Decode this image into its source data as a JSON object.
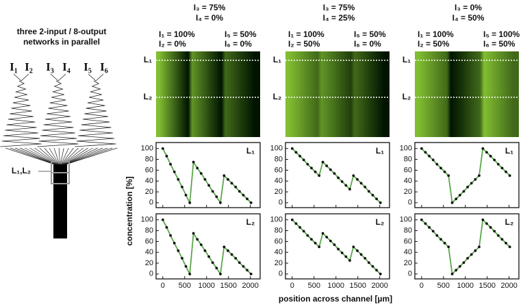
{
  "schematic": {
    "title": [
      "three 2-input / 8-output",
      "networks in parallel"
    ],
    "inputs": [
      "I₁",
      "I₂",
      "I₃",
      "I₄",
      "I₅",
      "I₆"
    ],
    "outlet_label": "L₁,L₂"
  },
  "columns": [
    {
      "top": [
        "I₃ = 75%",
        "I₄ = 0%"
      ],
      "left": [
        "I₁ = 100%",
        "I₂ = 0%"
      ],
      "right": [
        "I₅ = 50%",
        "I₆ = 0%"
      ],
      "image_labels": [
        "L₁",
        "L₂"
      ]
    },
    {
      "top": [
        "I₃ = 75%",
        "I₄ = 25%"
      ],
      "left": [
        "I₁ = 100%",
        "I₂ = 50%"
      ],
      "right": [
        "I₅ = 50%",
        "I₆ = 0%"
      ],
      "image_labels": [
        "L₁",
        "L₂"
      ]
    },
    {
      "top": [
        "I₃ = 0%",
        "I₄ = 50%"
      ],
      "left": [
        "I₁ = 100%",
        "I₂ = 50%"
      ],
      "right": [
        "I₅ = 100%",
        "I₆ = 50%"
      ],
      "image_labels": [
        "L₁",
        "L₂"
      ]
    }
  ],
  "axis_labels": {
    "y": "concentration [%]",
    "x": "position across channel [µm]"
  },
  "chart_data": [
    {
      "type": "line",
      "label": "L₁",
      "x": [
        0,
        88,
        176,
        264,
        352,
        440,
        528,
        616,
        700,
        788,
        876,
        964,
        1052,
        1140,
        1228,
        1316,
        1400,
        1488,
        1576,
        1664,
        1752,
        1840,
        1928,
        2016
      ],
      "xlim": [
        -60,
        2130
      ],
      "ylim": [
        -4,
        106
      ],
      "xticks": [
        0,
        500,
        1000,
        1500,
        2000
      ],
      "yticks": [
        0,
        20,
        40,
        60,
        80,
        100
      ],
      "series": [
        {
          "color": "#5aa64a",
          "style": "line",
          "values": [
            100,
            86,
            71,
            57,
            43,
            29,
            14,
            0,
            75,
            64,
            54,
            43,
            32,
            21,
            11,
            0,
            50,
            43,
            36,
            29,
            21,
            14,
            7,
            0
          ]
        },
        {
          "color": "#111111",
          "style": "markers",
          "values": [
            100,
            86,
            71,
            57,
            43,
            29,
            14,
            0,
            75,
            64,
            54,
            43,
            32,
            21,
            11,
            0,
            50,
            43,
            36,
            29,
            21,
            14,
            7,
            0
          ]
        }
      ]
    },
    {
      "type": "line",
      "label": "L₂",
      "x": [
        0,
        88,
        176,
        264,
        352,
        440,
        528,
        616,
        700,
        788,
        876,
        964,
        1052,
        1140,
        1228,
        1316,
        1400,
        1488,
        1576,
        1664,
        1752,
        1840,
        1928,
        2016
      ],
      "xlim": [
        -60,
        2130
      ],
      "ylim": [
        -4,
        106
      ],
      "xticks": [
        0,
        500,
        1000,
        1500,
        2000
      ],
      "yticks": [
        0,
        20,
        40,
        60,
        80,
        100
      ],
      "series": [
        {
          "color": "#5aa64a",
          "style": "line",
          "values": [
            100,
            86,
            71,
            57,
            43,
            29,
            14,
            0,
            75,
            64,
            54,
            43,
            32,
            21,
            11,
            0,
            50,
            43,
            36,
            29,
            21,
            14,
            7,
            0
          ]
        },
        {
          "color": "#111111",
          "style": "markers",
          "values": [
            100,
            86,
            71,
            57,
            43,
            29,
            14,
            0,
            75,
            64,
            54,
            43,
            32,
            21,
            11,
            0,
            50,
            43,
            36,
            29,
            21,
            14,
            7,
            0
          ]
        }
      ]
    },
    {
      "type": "line",
      "label": "L₁",
      "x": [
        0,
        88,
        176,
        264,
        352,
        440,
        528,
        616,
        700,
        788,
        876,
        964,
        1052,
        1140,
        1228,
        1316,
        1400,
        1488,
        1576,
        1664,
        1752,
        1840,
        1928,
        2016
      ],
      "xlim": [
        -60,
        2130
      ],
      "ylim": [
        -4,
        106
      ],
      "xticks": [
        0,
        500,
        1000,
        1500,
        2000
      ],
      "yticks": [
        0,
        20,
        40,
        60,
        80,
        100
      ],
      "series": [
        {
          "color": "#5aa64a",
          "style": "line",
          "values": [
            100,
            93,
            86,
            79,
            71,
            64,
            57,
            50,
            75,
            68,
            61,
            54,
            46,
            39,
            32,
            25,
            50,
            43,
            36,
            29,
            21,
            14,
            7,
            0
          ]
        },
        {
          "color": "#111111",
          "style": "markers",
          "values": [
            100,
            93,
            86,
            79,
            71,
            64,
            57,
            50,
            75,
            68,
            61,
            54,
            46,
            39,
            32,
            25,
            50,
            43,
            36,
            29,
            21,
            14,
            7,
            0
          ]
        }
      ]
    },
    {
      "type": "line",
      "label": "L₂",
      "x": [
        0,
        88,
        176,
        264,
        352,
        440,
        528,
        616,
        700,
        788,
        876,
        964,
        1052,
        1140,
        1228,
        1316,
        1400,
        1488,
        1576,
        1664,
        1752,
        1840,
        1928,
        2016
      ],
      "xlim": [
        -60,
        2130
      ],
      "ylim": [
        -4,
        106
      ],
      "xticks": [
        0,
        500,
        1000,
        1500,
        2000
      ],
      "yticks": [
        0,
        20,
        40,
        60,
        80,
        100
      ],
      "series": [
        {
          "color": "#5aa64a",
          "style": "line",
          "values": [
            100,
            93,
            86,
            79,
            71,
            64,
            57,
            50,
            75,
            68,
            61,
            54,
            46,
            39,
            32,
            25,
            50,
            43,
            36,
            29,
            21,
            14,
            7,
            0
          ]
        },
        {
          "color": "#111111",
          "style": "markers",
          "values": [
            100,
            93,
            86,
            79,
            71,
            64,
            57,
            50,
            75,
            68,
            61,
            54,
            46,
            39,
            32,
            25,
            50,
            43,
            36,
            29,
            21,
            14,
            7,
            0
          ]
        }
      ]
    },
    {
      "type": "line",
      "label": "L₁",
      "x": [
        0,
        88,
        176,
        264,
        352,
        440,
        528,
        616,
        700,
        788,
        876,
        964,
        1052,
        1140,
        1228,
        1316,
        1400,
        1488,
        1576,
        1664,
        1752,
        1840,
        1928,
        2016
      ],
      "xlim": [
        -60,
        2130
      ],
      "ylim": [
        -4,
        106
      ],
      "xticks": [
        0,
        500,
        1000,
        1500,
        2000
      ],
      "yticks": [
        0,
        20,
        40,
        60,
        80,
        100
      ],
      "series": [
        {
          "color": "#5aa64a",
          "style": "line",
          "values": [
            100,
            93,
            86,
            79,
            71,
            64,
            57,
            50,
            0,
            7,
            14,
            21,
            29,
            36,
            43,
            50,
            100,
            93,
            86,
            79,
            71,
            64,
            57,
            50
          ]
        },
        {
          "color": "#111111",
          "style": "markers",
          "values": [
            100,
            93,
            86,
            79,
            71,
            64,
            57,
            50,
            0,
            7,
            14,
            21,
            29,
            36,
            43,
            50,
            100,
            93,
            86,
            79,
            71,
            64,
            57,
            50
          ]
        }
      ]
    },
    {
      "type": "line",
      "label": "L₂",
      "x": [
        0,
        88,
        176,
        264,
        352,
        440,
        528,
        616,
        700,
        788,
        876,
        964,
        1052,
        1140,
        1228,
        1316,
        1400,
        1488,
        1576,
        1664,
        1752,
        1840,
        1928,
        2016
      ],
      "xlim": [
        -60,
        2130
      ],
      "ylim": [
        -4,
        106
      ],
      "xticks": [
        0,
        500,
        1000,
        1500,
        2000
      ],
      "yticks": [
        0,
        20,
        40,
        60,
        80,
        100
      ],
      "series": [
        {
          "color": "#5aa64a",
          "style": "line",
          "values": [
            100,
            93,
            86,
            79,
            71,
            64,
            57,
            50,
            0,
            7,
            14,
            21,
            29,
            36,
            43,
            50,
            100,
            93,
            86,
            79,
            71,
            64,
            57,
            50
          ]
        },
        {
          "color": "#111111",
          "style": "markers",
          "values": [
            100,
            93,
            86,
            79,
            71,
            64,
            57,
            50,
            0,
            7,
            14,
            21,
            29,
            36,
            43,
            50,
            100,
            93,
            86,
            79,
            71,
            64,
            57,
            50
          ]
        }
      ]
    }
  ]
}
